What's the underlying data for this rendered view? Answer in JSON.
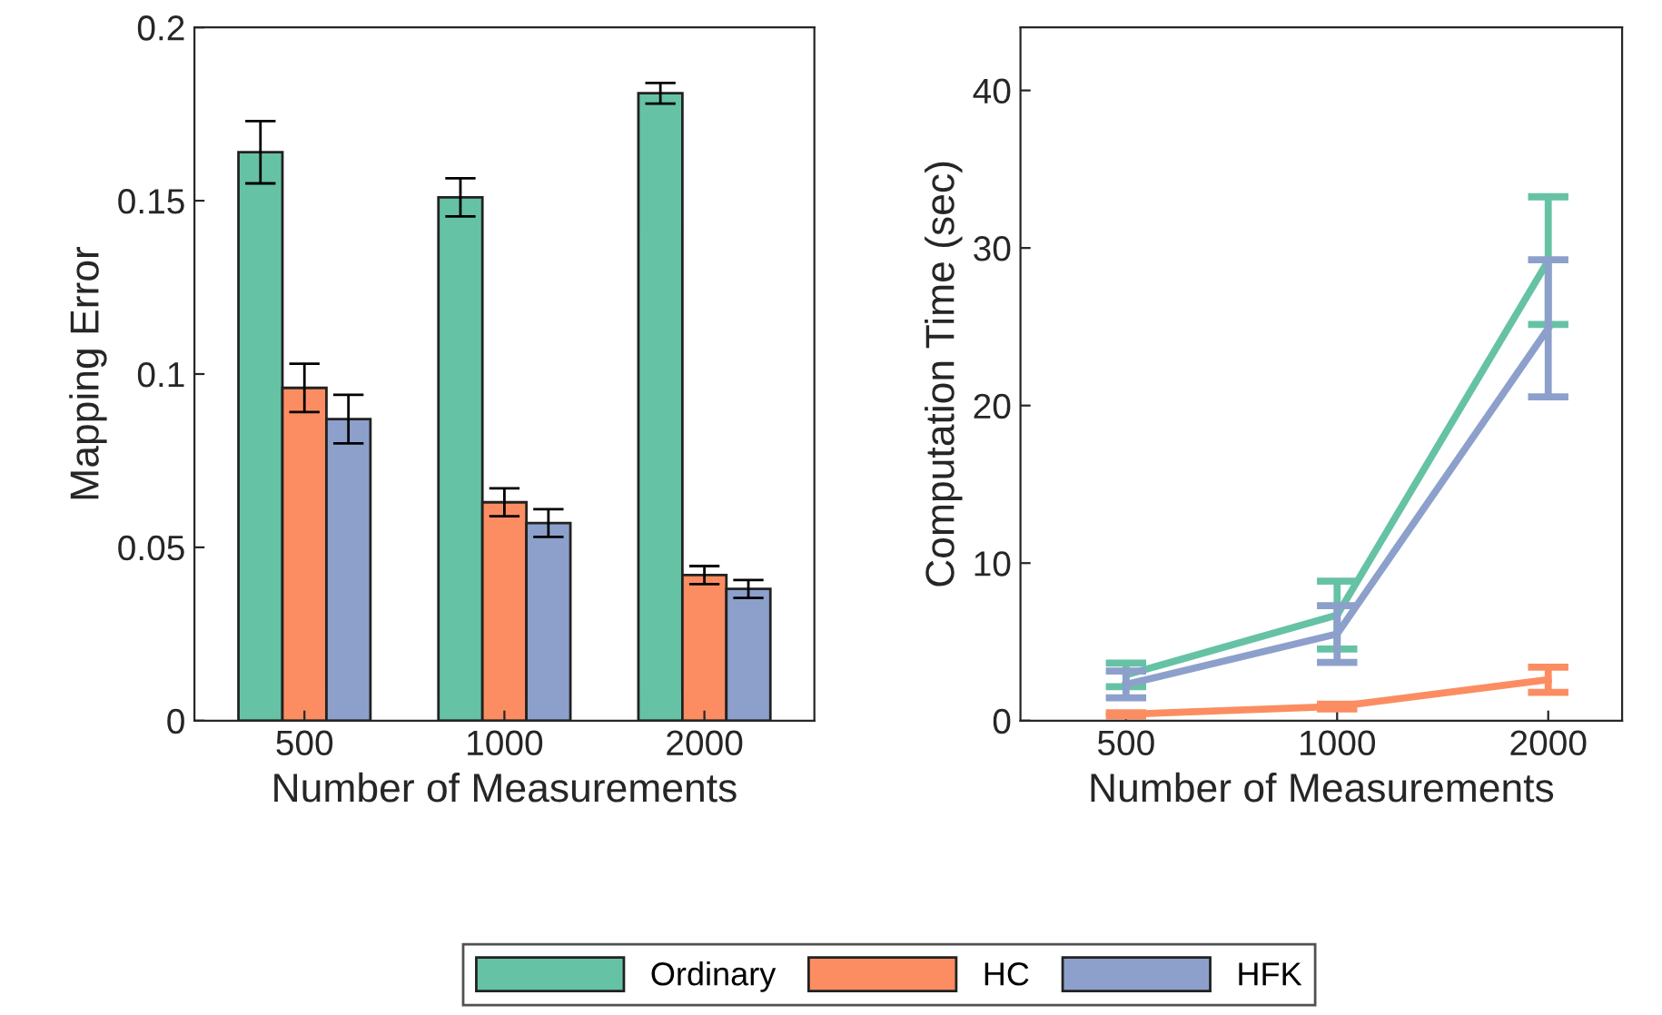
{
  "chart_data": [
    {
      "type": "bar",
      "xlabel": "Number of Measurements",
      "ylabel": "Mapping Error",
      "categories": [
        "500",
        "1000",
        "2000"
      ],
      "ylim": [
        0,
        0.2
      ],
      "yticks": [
        0,
        0.05,
        0.1,
        0.15,
        0.2
      ],
      "grid": false,
      "legend": "bottom",
      "series": [
        {
          "name": "Ordinary",
          "color": "#66c2a5",
          "values": [
            0.164,
            0.151,
            0.181
          ],
          "errors": [
            0.009,
            0.0055,
            0.003
          ]
        },
        {
          "name": "HC",
          "color": "#fc8d62",
          "values": [
            0.096,
            0.063,
            0.042
          ],
          "errors": [
            0.007,
            0.004,
            0.0026
          ]
        },
        {
          "name": "HFK",
          "color": "#8da0cb",
          "values": [
            0.087,
            0.057,
            0.038
          ],
          "errors": [
            0.007,
            0.004,
            0.0026
          ]
        }
      ]
    },
    {
      "type": "line",
      "xlabel": "Number of Measurements",
      "ylabel": "Computation Time (sec)",
      "categories": [
        "500",
        "1000",
        "2000"
      ],
      "ylim": [
        0,
        44
      ],
      "yticks": [
        0,
        10,
        20,
        30,
        40
      ],
      "grid": false,
      "legend": "bottom",
      "marker": "none",
      "line_style": "solid",
      "series": [
        {
          "name": "Ordinary",
          "color": "#66c2a5",
          "values": [
            2.9,
            6.7,
            29.2
          ],
          "errors": [
            0.75,
            2.15,
            4.05
          ]
        },
        {
          "name": "HC",
          "color": "#fc8d62",
          "values": [
            0.4,
            0.9,
            2.6
          ],
          "errors": [
            0.1,
            0.15,
            0.8
          ]
        },
        {
          "name": "HFK",
          "color": "#8da0cb",
          "values": [
            2.3,
            5.5,
            24.9
          ],
          "errors": [
            0.85,
            1.8,
            4.35
          ]
        }
      ]
    }
  ]
}
